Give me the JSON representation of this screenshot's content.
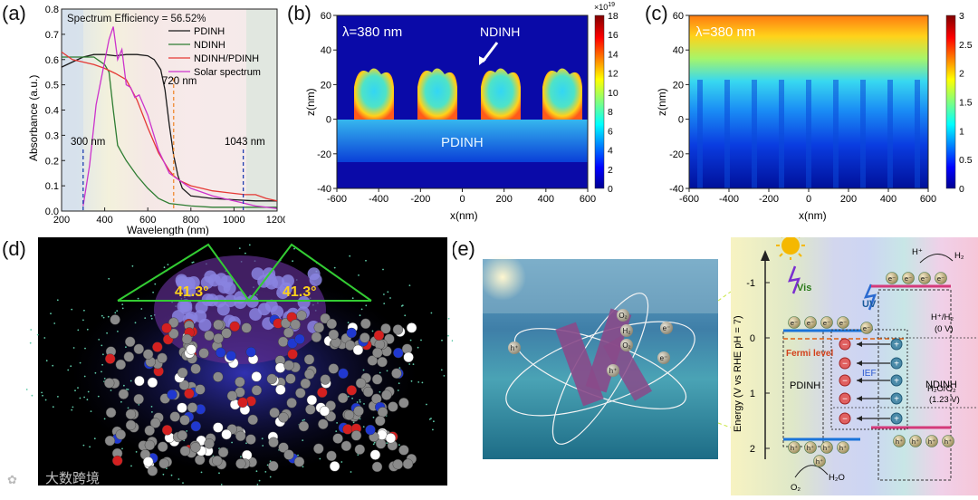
{
  "panels": {
    "a": {
      "label": "(a)",
      "annotation": "Spectrum Efficiency = 56.52%",
      "xlabel": "Wavelength (nm)",
      "ylabel": "Absorbance (a.u.)",
      "xticks": [
        "200",
        "400",
        "600",
        "800",
        "1000",
        "1200"
      ],
      "yticks": [
        "0.0",
        "0.1",
        "0.2",
        "0.3",
        "0.4",
        "0.5",
        "0.6",
        "0.7",
        "0.8"
      ],
      "legend": [
        "PDINH",
        "NDINH",
        "NDINH/PDINH",
        "Solar spectrum"
      ],
      "marks": [
        "300 nm",
        "720 nm",
        "1043 nm"
      ],
      "colors": {
        "pdinh": "#1a1a1a",
        "ndinh": "#2e7d32",
        "hetero": "#e53935",
        "solar": "#cc33cc"
      }
    },
    "b": {
      "label": "(b)",
      "wavelength": "λ=380 nm",
      "top_label": "NDINH",
      "bottom_label": "PDINH",
      "xlabel": "x(nm)",
      "ylabel": "z(nm)",
      "xticks": [
        "-600",
        "-400",
        "-200",
        "0",
        "200",
        "400",
        "600"
      ],
      "yticks": [
        "60",
        "40",
        "20",
        "0",
        "-20",
        "-40"
      ],
      "cb_ticks": [
        "18",
        "16",
        "14",
        "12",
        "10",
        "8",
        "6",
        "4",
        "2",
        "0"
      ],
      "cb_exp": "×10",
      "cb_exp_power": "19"
    },
    "c": {
      "label": "(c)",
      "wavelength": "λ=380 nm",
      "xlabel": "x(nm)",
      "ylabel": "z(nm)",
      "xticks": [
        "-600",
        "-400",
        "-200",
        "0",
        "200",
        "400",
        "600"
      ],
      "yticks": [
        "60",
        "40",
        "20",
        "0",
        "-20",
        "-40"
      ],
      "cb_ticks": [
        "3",
        "2.5",
        "2",
        "1.5",
        "1",
        "0.5",
        "0"
      ]
    },
    "d": {
      "label": "(d)",
      "angle_left": "41.3°",
      "angle_right": "41.3°",
      "watermark": "大数跨境"
    },
    "e": {
      "label": "(e)",
      "scene_labels": [
        "O₂",
        "H₂",
        "O₂",
        "h⁺",
        "h⁺",
        "e⁻",
        "e⁻"
      ],
      "ylabel": "Energy (V vs RHE pH = 7)",
      "yticks": [
        "-1",
        "0",
        "1",
        "2"
      ],
      "vis": "Vis",
      "uv": "UV",
      "fermi": "Fermi level",
      "ief": "IEF",
      "pdinh": "PDINH",
      "ndinh": "NDINH",
      "h_pair": "H⁺/H₂",
      "h_pot": "(0 V)",
      "o_pair": "H₂O/O₂",
      "o_pot": "(1.23 V)",
      "hplus": "H⁺",
      "h2": "H₂",
      "o2": "O₂",
      "h2o": "H₂O",
      "e_sym": "e⁻",
      "h_sym": "h⁺"
    }
  },
  "chart_data": [
    {
      "type": "line",
      "title": "Spectrum Efficiency = 56.52%",
      "xlabel": "Wavelength (nm)",
      "ylabel": "Absorbance (a.u.)",
      "xlim": [
        200,
        1200
      ],
      "ylim": [
        0,
        0.8
      ],
      "series": [
        {
          "name": "PDINH",
          "x": [
            200,
            250,
            300,
            350,
            400,
            450,
            500,
            550,
            600,
            630,
            660,
            680,
            700,
            720,
            740,
            760,
            800,
            900,
            1000,
            1100,
            1200
          ],
          "y": [
            0.57,
            0.59,
            0.61,
            0.62,
            0.62,
            0.615,
            0.62,
            0.62,
            0.615,
            0.6,
            0.56,
            0.48,
            0.34,
            0.22,
            0.14,
            0.09,
            0.06,
            0.05,
            0.045,
            0.04,
            0.04
          ]
        },
        {
          "name": "NDINH",
          "x": [
            200,
            250,
            300,
            350,
            400,
            420,
            440,
            460,
            480,
            500,
            550,
            600,
            650,
            700,
            750,
            800,
            900,
            1000,
            1100,
            1200
          ],
          "y": [
            0.61,
            0.61,
            0.61,
            0.61,
            0.58,
            0.55,
            0.4,
            0.26,
            0.23,
            0.2,
            0.14,
            0.09,
            0.05,
            0.03,
            0.025,
            0.02,
            0.015,
            0.015,
            0.015,
            0.015
          ]
        },
        {
          "name": "NDINH/PDINH",
          "x": [
            200,
            250,
            300,
            350,
            400,
            450,
            500,
            550,
            600,
            650,
            700,
            720,
            750,
            800,
            850,
            900,
            1000,
            1050,
            1100,
            1150,
            1200
          ],
          "y": [
            0.63,
            0.6,
            0.59,
            0.58,
            0.565,
            0.545,
            0.52,
            0.44,
            0.33,
            0.23,
            0.16,
            0.14,
            0.12,
            0.1,
            0.09,
            0.08,
            0.07,
            0.065,
            0.065,
            0.05,
            0.04
          ]
        },
        {
          "name": "Solar spectrum",
          "x": [
            300,
            330,
            360,
            390,
            420,
            440,
            460,
            480,
            500,
            520,
            540,
            560,
            600,
            650,
            700,
            750,
            800,
            900,
            1000,
            1100,
            1200
          ],
          "y": [
            0.02,
            0.18,
            0.42,
            0.55,
            0.68,
            0.73,
            0.6,
            0.64,
            0.5,
            0.49,
            0.45,
            0.46,
            0.38,
            0.24,
            0.15,
            0.12,
            0.09,
            0.06,
            0.04,
            0.02,
            0.01
          ]
        }
      ],
      "vlines": [
        300,
        720,
        1043
      ]
    },
    {
      "type": "heatmap",
      "title": "λ=380 nm",
      "xlabel": "x(nm)",
      "ylabel": "z(nm)",
      "xlim": [
        -600,
        600
      ],
      "ylim": [
        -40,
        60
      ],
      "colorbar": [
        0,
        18
      ],
      "colorbar_exponent": "×10^19"
    },
    {
      "type": "heatmap",
      "title": "λ=380 nm",
      "xlabel": "x(nm)",
      "ylabel": "z(nm)",
      "xlim": [
        -600,
        600
      ],
      "ylim": [
        -40,
        60
      ],
      "colorbar": [
        0,
        3
      ]
    }
  ]
}
